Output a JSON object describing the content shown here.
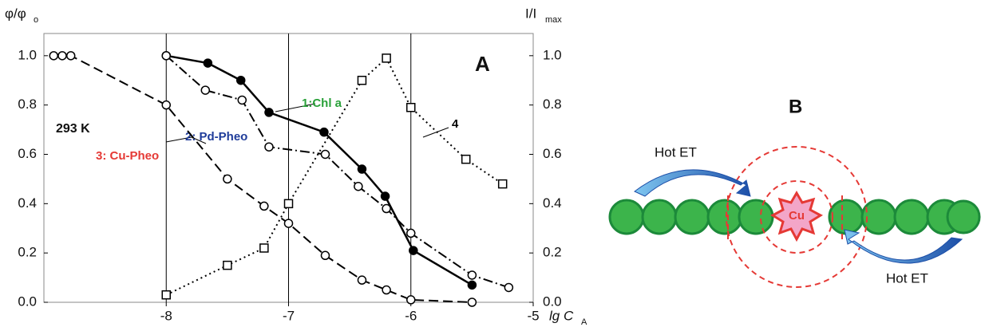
{
  "chart_data": {
    "type": "line",
    "panel_label": "A",
    "annotation": "293 K",
    "y_label": "φ/φ",
    "y_label_sub": "o",
    "y2_label": "I/I",
    "y2_label_sub": "max",
    "x_label": "lg C",
    "x_label_sub": "A",
    "xlim": [
      -9,
      -5
    ],
    "xticks": [
      -8,
      -7,
      -6,
      -5
    ],
    "ylim": [
      0,
      1.09
    ],
    "yticks": [
      {
        "value": 0,
        "label": "0.0"
      },
      0.2,
      0.4,
      0.6,
      0.8,
      {
        "value": 1,
        "label": "1.0"
      }
    ],
    "y2lim": [
      0,
      1.09
    ],
    "y2ticks": [
      {
        "value": 0,
        "label": "0.0"
      },
      0.2,
      0.4,
      0.6,
      0.8,
      {
        "value": 1,
        "label": "1.0"
      }
    ],
    "reference_lines": [
      -8,
      -7,
      -6
    ],
    "series": [
      {
        "name": "1:Chl a",
        "color": "#000000",
        "label_color": "#2aa13a",
        "marker": "filled-circle",
        "dash": "solid",
        "x": [
          -8.0,
          -7.66,
          -7.39,
          -7.16,
          -6.71,
          -6.4,
          -6.21,
          -5.98,
          -5.5
        ],
        "values": [
          1.0,
          0.97,
          0.9,
          0.77,
          0.69,
          0.54,
          0.43,
          0.21,
          0.07
        ]
      },
      {
        "name": "2: Pd-Pheo",
        "color": "#000000",
        "label_color": "#1f3c9a",
        "marker": "circle",
        "dash": "dashdot",
        "x": [
          -8.0,
          -7.68,
          -7.38,
          -7.16,
          -6.7,
          -6.43,
          -6.2,
          -6.0,
          -5.5,
          -5.2
        ],
        "values": [
          1.0,
          0.86,
          0.82,
          0.63,
          0.6,
          0.47,
          0.38,
          0.28,
          0.11,
          0.06
        ]
      },
      {
        "name": "3: Cu-Pheo",
        "color": "#000000",
        "label_color": "#e53935",
        "marker": "circle",
        "dash": "dash",
        "x": [
          -8.92,
          -8.85,
          -8.78,
          -8.0,
          -7.5,
          -7.2,
          -7.0,
          -6.7,
          -6.4,
          -6.2,
          -6.0,
          -5.5
        ],
        "values": [
          1.0,
          1.0,
          1.0,
          0.8,
          0.5,
          0.39,
          0.32,
          0.19,
          0.09,
          0.05,
          0.01,
          0.0
        ]
      },
      {
        "name": "4",
        "color": "#000000",
        "label_color": "#000000",
        "marker": "square",
        "dash": "dot",
        "axis": "y2",
        "x": [
          -8.0,
          -7.5,
          -7.2,
          -7.0,
          -6.4,
          -6.2,
          -6.0,
          -5.55,
          -5.25
        ],
        "values": [
          0.03,
          0.15,
          0.22,
          0.4,
          0.9,
          0.99,
          0.79,
          0.58,
          0.48
        ]
      }
    ]
  },
  "diagram": {
    "panel_label": "B",
    "center": "Cu",
    "arrow_labels": [
      "Hot ET",
      "Hot ET"
    ]
  }
}
